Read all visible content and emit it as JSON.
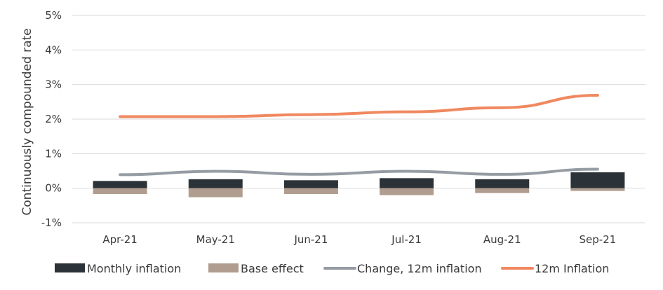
{
  "chart_data": {
    "type": "bar",
    "title": "",
    "xlabel": "",
    "ylabel": "Continuously compounded rate",
    "categories": [
      "Apr-21",
      "May-21",
      "Jun-21",
      "Jul-21",
      "Aug-21",
      "Sep-21"
    ],
    "ylim": [
      -1,
      5
    ],
    "yticks": [
      -1,
      0,
      1,
      2,
      3,
      4,
      5
    ],
    "ytick_labels": [
      "-1%",
      "0%",
      "1%",
      "2%",
      "3%",
      "4%",
      "5%"
    ],
    "grid": true,
    "legend_position": "bottom",
    "series": [
      {
        "name": "Monthly inflation",
        "kind": "bar",
        "color": "#2c3338",
        "values": [
          0.21,
          0.26,
          0.23,
          0.29,
          0.26,
          0.46
        ]
      },
      {
        "name": "Base effect",
        "kind": "bar",
        "color": "#b09d8f",
        "values": [
          -0.17,
          -0.26,
          -0.17,
          -0.2,
          -0.14,
          -0.08
        ]
      },
      {
        "name": "Change, 12m inflation",
        "kind": "line",
        "color": "#959ca3",
        "values": [
          0.39,
          0.49,
          0.4,
          0.49,
          0.4,
          0.55
        ]
      },
      {
        "name": "12m Inflation",
        "kind": "line",
        "color": "#f08860",
        "values": [
          2.07,
          2.07,
          2.13,
          2.21,
          2.33,
          2.69
        ]
      }
    ]
  }
}
